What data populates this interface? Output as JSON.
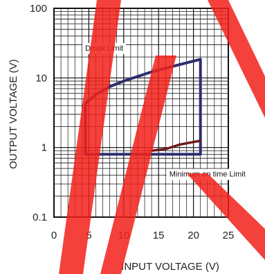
{
  "chart_data": {
    "type": "line",
    "xlabel": "INPUT VOLTAGE (V)",
    "ylabel": "OUTPUT VOLTAGE (V)",
    "xlim": [
      0,
      25
    ],
    "ylim": [
      0.1,
      100
    ],
    "x_scale": "linear",
    "y_scale": "log",
    "grid": true,
    "x_ticks": [
      {
        "value": 0,
        "label": "0"
      },
      {
        "value": 5,
        "label": "5"
      },
      {
        "value": 10,
        "label": "10"
      },
      {
        "value": 15,
        "label": "15"
      },
      {
        "value": 20,
        "label": "20"
      },
      {
        "value": 25,
        "label": "25"
      }
    ],
    "y_ticks": [
      {
        "value": 0.1,
        "label": "0.1"
      },
      {
        "value": 1,
        "label": "1"
      },
      {
        "value": 10,
        "label": "10"
      },
      {
        "value": 100,
        "label": "100"
      }
    ],
    "series": [
      {
        "color": "#2d2e6e",
        "points": [
          [
            4.5,
            0.8
          ],
          [
            4.5,
            4.3
          ],
          [
            6,
            5.8
          ],
          [
            8,
            7.5
          ],
          [
            10,
            9.0
          ],
          [
            12,
            10.5
          ],
          [
            14,
            12.2
          ],
          [
            16,
            13.8
          ],
          [
            18,
            15.5
          ],
          [
            21,
            18.5
          ],
          [
            21,
            0.8
          ],
          [
            4.5,
            0.8
          ]
        ]
      },
      {
        "color": "#6e1a1a",
        "points": [
          [
            14,
            0.9
          ],
          [
            16,
            0.95
          ],
          [
            18,
            1.1
          ],
          [
            20,
            1.2
          ],
          [
            21,
            1.25
          ]
        ]
      }
    ],
    "annotations": [
      {
        "text": "Dmax Limit",
        "x": 7.2,
        "y": 27
      },
      {
        "text": "Minimum on time Limit",
        "x": 22,
        "y": 0.42
      }
    ]
  },
  "colors": {
    "border": "#111111",
    "grid": "#111111",
    "watermark": "#f2201a"
  }
}
